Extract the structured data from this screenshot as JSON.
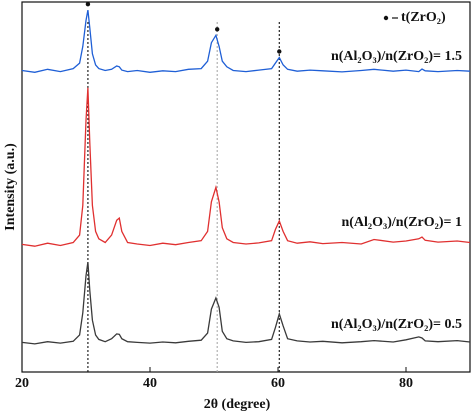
{
  "chart_data": {
    "type": "line",
    "x_label": "2θ (degree)",
    "y_label": "Intensity (a.u.)",
    "xlim": [
      20,
      90
    ],
    "xticks": [
      20,
      40,
      60,
      80
    ],
    "ylim": [
      0,
      100
    ],
    "legend_marker": "t(ZrO₂)",
    "reference_lines": [
      30.3,
      50.5,
      60.2
    ],
    "reference_colors": [
      "#111111",
      "#aaaaaa",
      "#111111"
    ],
    "x": [
      20,
      22,
      24,
      26,
      28,
      29,
      29.5,
      30,
      30.3,
      30.6,
      31,
      31.5,
      32,
      33,
      34,
      34.8,
      35.2,
      35.6,
      36.5,
      38,
      40,
      42,
      44,
      46,
      48,
      49,
      49.6,
      50.3,
      50.8,
      51.3,
      52,
      53,
      55,
      57,
      59,
      59.6,
      60.2,
      60.8,
      61.5,
      63,
      65,
      67,
      70,
      73,
      75,
      78,
      80,
      82,
      82.5,
      83,
      85,
      88,
      90
    ],
    "series": [
      {
        "name": "n(Al₂O₃)/n(ZrO₂)= 1.5",
        "color": "#1f5fd6",
        "values": [
          81.5,
          81,
          81.8,
          81.2,
          82,
          83.5,
          88,
          95,
          97.8,
          93,
          86,
          83,
          82,
          81.5,
          81.8,
          82.7,
          82.5,
          81.6,
          81.2,
          81.5,
          81,
          81.4,
          81.2,
          81.8,
          82,
          84,
          89,
          91,
          88,
          84,
          82.5,
          81.5,
          81.2,
          81.6,
          82,
          83.5,
          85,
          83,
          81.8,
          81.3,
          81.6,
          81.4,
          81.1,
          81.5,
          81.8,
          81.3,
          81.6,
          81.2,
          81.9,
          81.4,
          81.2,
          81.5,
          81.3
        ]
      },
      {
        "name": "n(Al₂O₃)/n(ZrO₂)= 1",
        "color": "#e03030",
        "values": [
          34.5,
          34,
          34.8,
          34.2,
          35,
          37,
          45,
          68,
          76.8,
          62,
          45,
          38,
          36,
          35,
          37,
          41,
          41.6,
          38,
          35,
          34.6,
          34.2,
          34.8,
          34.4,
          35,
          35.5,
          38,
          46,
          49.9,
          46,
          39,
          36,
          35,
          34.6,
          34.9,
          35.5,
          38.5,
          40.8,
          38,
          35.5,
          34.8,
          35.2,
          34.7,
          35,
          34.6,
          35.8,
          35.1,
          35.4,
          36,
          36.5,
          35.6,
          35.1,
          35.4,
          35
        ]
      },
      {
        "name": "n(Al₂O₃)/n(ZrO₂)= 0.5",
        "color": "#3a3a3a",
        "values": [
          8,
          7.6,
          8.2,
          7.8,
          8.3,
          10,
          16,
          26,
          29.7,
          22,
          14,
          10,
          8.8,
          8.2,
          9,
          10.3,
          10.2,
          9,
          8.2,
          8,
          7.8,
          8.1,
          7.9,
          8.3,
          8.6,
          10.5,
          17,
          20,
          17.5,
          11,
          9,
          8.4,
          8,
          8.2,
          8.8,
          12,
          15.7,
          12.5,
          9,
          8.4,
          8.1,
          8.3,
          7.9,
          8.2,
          8.5,
          8.1,
          8.7,
          9.5,
          9.2,
          8.4,
          8.2,
          8.5,
          8.1
        ]
      }
    ]
  }
}
